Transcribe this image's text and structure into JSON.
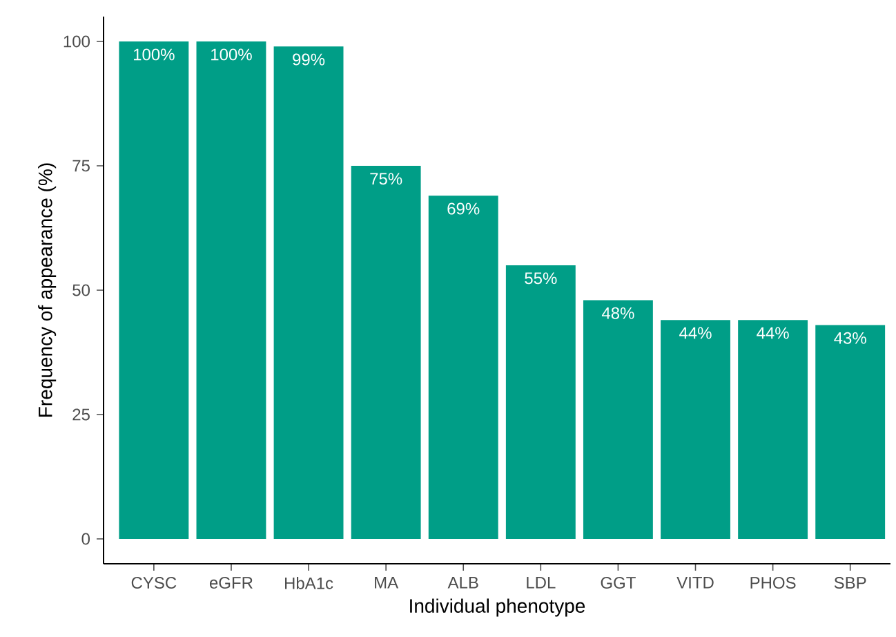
{
  "chart_data": {
    "type": "bar",
    "xlabel": "Individual phenotype",
    "ylabel": "Frequency of appearance (%)",
    "categories": [
      "CYSC",
      "eGFR",
      "HbA1c",
      "MA",
      "ALB",
      "LDL",
      "GGT",
      "VITD",
      "PHOS",
      "SBP"
    ],
    "values": [
      100,
      100,
      99,
      75,
      69,
      55,
      48,
      44,
      44,
      43
    ],
    "value_labels": [
      "100%",
      "100%",
      "99%",
      "75%",
      "69%",
      "55%",
      "48%",
      "44%",
      "44%",
      "43%"
    ],
    "color": "#009e87",
    "ylim": [
      -5,
      105
    ],
    "yticks": [
      0,
      25,
      50,
      75,
      100
    ]
  }
}
